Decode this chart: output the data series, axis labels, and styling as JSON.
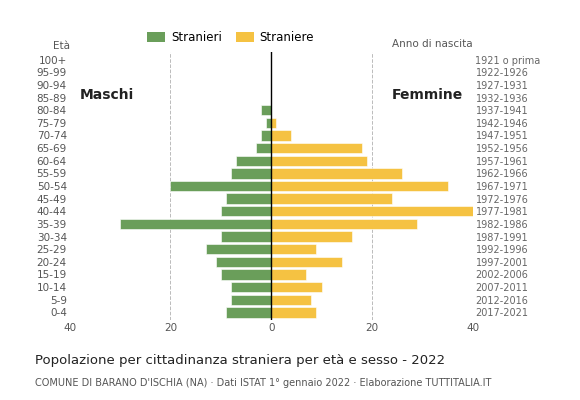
{
  "age_groups": [
    "0-4",
    "5-9",
    "10-14",
    "15-19",
    "20-24",
    "25-29",
    "30-34",
    "35-39",
    "40-44",
    "45-49",
    "50-54",
    "55-59",
    "60-64",
    "65-69",
    "70-74",
    "75-79",
    "80-84",
    "85-89",
    "90-94",
    "95-99",
    "100+"
  ],
  "birth_years": [
    "2017-2021",
    "2012-2016",
    "2007-2011",
    "2002-2006",
    "1997-2001",
    "1992-1996",
    "1987-1991",
    "1982-1986",
    "1977-1981",
    "1972-1976",
    "1967-1971",
    "1962-1966",
    "1957-1961",
    "1952-1956",
    "1947-1951",
    "1942-1946",
    "1937-1941",
    "1932-1936",
    "1927-1931",
    "1922-1926",
    "1921 o prima"
  ],
  "males": [
    9,
    8,
    8,
    10,
    11,
    13,
    10,
    30,
    10,
    9,
    20,
    8,
    7,
    3,
    2,
    1,
    2,
    0,
    0,
    0,
    0
  ],
  "females": [
    9,
    8,
    10,
    7,
    14,
    9,
    16,
    29,
    40,
    24,
    35,
    26,
    19,
    18,
    4,
    1,
    0,
    0,
    0,
    0,
    0
  ],
  "male_color": "#6a9e5a",
  "female_color": "#f5c242",
  "background_color": "#ffffff",
  "grid_color": "#bbbbbb",
  "title": "Popolazione per cittadinanza straniera per età e sesso - 2022",
  "subtitle": "COMUNE DI BARANO D'ISCHIA (NA) · Dati ISTAT 1° gennaio 2022 · Elaborazione TUTTITALIA.IT",
  "legend_males": "Stranieri",
  "legend_females": "Straniere",
  "xlim": 40,
  "maschi_label": "Maschi",
  "femmine_label": "Femmine",
  "birth_year_label": "Anno di nascita",
  "bar_height": 0.82,
  "title_fontsize": 9.5,
  "subtitle_fontsize": 7.0,
  "axis_fontsize": 7.5,
  "legend_fontsize": 8.5
}
